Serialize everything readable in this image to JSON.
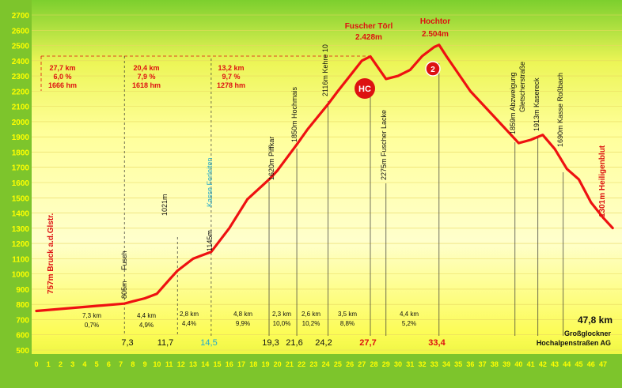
{
  "chart_data": {
    "type": "line",
    "ylim": [
      500,
      2700
    ],
    "xlim": [
      0,
      48
    ],
    "y_ticks": [
      "500",
      "600",
      "700",
      "800",
      "900",
      "1000",
      "1100",
      "1200",
      "1300",
      "1400",
      "1500",
      "1600",
      "1700",
      "1800",
      "1900",
      "2000",
      "2100",
      "2200",
      "2300",
      "2400",
      "2500",
      "2600",
      "2700"
    ],
    "x_ticks": [
      "0",
      "1",
      "2",
      "3",
      "4",
      "5",
      "6",
      "7",
      "8",
      "9",
      "10",
      "11",
      "12",
      "13",
      "14",
      "15",
      "16",
      "17",
      "18",
      "19",
      "20",
      "21",
      "22",
      "23",
      "24",
      "25",
      "26",
      "27",
      "28",
      "29",
      "30",
      "31",
      "32",
      "33",
      "34",
      "35",
      "36",
      "37",
      "38",
      "39",
      "40",
      "41",
      "42",
      "43",
      "44",
      "45",
      "46",
      "47"
    ],
    "series": [
      {
        "x": [
          0,
          7.3,
          8,
          9,
          10,
          11,
          11.7,
          13,
          14.5,
          16,
          17.5,
          19.3,
          20,
          21.6,
          22.5,
          24.2,
          25,
          26,
          27,
          27.7,
          29,
          30,
          31,
          32,
          33,
          33.4,
          34,
          36,
          38,
          40,
          41,
          42,
          43,
          44,
          45,
          46,
          47,
          47.8
        ],
        "y": [
          757,
          805,
          820,
          840,
          870,
          960,
          1021,
          1100,
          1145,
          1300,
          1490,
          1620,
          1680,
          1850,
          1950,
          2116,
          2200,
          2300,
          2400,
          2428,
          2280,
          2300,
          2340,
          2430,
          2490,
          2504,
          2430,
          2200,
          2030,
          1859,
          1880,
          1913,
          1820,
          1690,
          1620,
          1470,
          1370,
          1301
        ]
      }
    ],
    "place_labels": {
      "start": "757m Bruck a.d.Glstr.",
      "end": "1301m Heiligenblut",
      "fusch": "Fusch",
      "fusch_alt": "805m",
      "alt_1021": "1021m",
      "ferleiten": "Kasse Ferleiten",
      "ferleiten_alt": "1145m",
      "piffkar": "1620m Piffkar",
      "hochmais": "1850m Hochmais",
      "kehre10": "2116m Kehre 10",
      "fuscher_lacke": "2275m Fuscher Lacke",
      "abzweigung": "1859m Abzweigung",
      "gletscherstrasse": "Gletscherstraße",
      "kasereck": "1913m Kasereck",
      "rossbach": "1690m Kasse Roßbach"
    },
    "peaks": {
      "toerl_name": "Fuscher Törl",
      "toerl_alt": "2.428m",
      "hochtor_name": "Hochtor",
      "hochtor_alt": "2.504m",
      "hc_badge": "HC",
      "cat_badge": "2"
    },
    "climb_boxes": [
      {
        "l1": "27,7 km",
        "l2": "6,0 %",
        "l3": "1666 hm"
      },
      {
        "l1": "20,4 km",
        "l2": "7,9 %",
        "l3": "1618 hm"
      },
      {
        "l1": "13,2 km",
        "l2": "9,7 %",
        "l3": "1278 hm"
      }
    ],
    "segments": [
      {
        "km": "7,3 km",
        "pct": "0,7%"
      },
      {
        "km": "4,4 km",
        "pct": "4,9%"
      },
      {
        "km": "2,8 km",
        "pct": "4,4%"
      },
      {
        "km": "4,8 km",
        "pct": "9,9%"
      },
      {
        "km": "2,3 km",
        "pct": "10,0%"
      },
      {
        "km": "2,6 km",
        "pct": "10,2%"
      },
      {
        "km": "3,5 km",
        "pct": "8,8%"
      },
      {
        "km": "4,4 km",
        "pct": "5,2%"
      }
    ],
    "km_marks": [
      "7,3",
      "11,7",
      "14,5",
      "19,3",
      "21,6",
      "24,2",
      "27,7",
      "33,4"
    ],
    "total": "47,8 km",
    "credit_1": "Großglockner",
    "credit_2": "Hochalpenstraßen AG"
  },
  "colors": {
    "line": "#ee1111",
    "accent_red": "#dd1111",
    "cyan": "#22aacc",
    "axis_strip": "#66bb22",
    "tick_text": "#ffff00"
  }
}
